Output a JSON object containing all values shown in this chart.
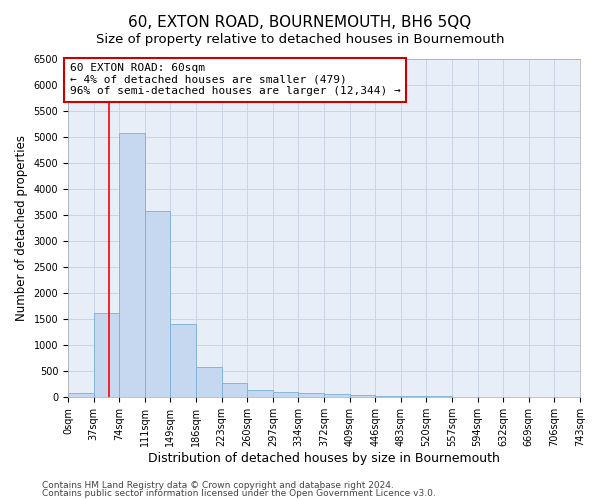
{
  "title": "60, EXTON ROAD, BOURNEMOUTH, BH6 5QQ",
  "subtitle": "Size of property relative to detached houses in Bournemouth",
  "xlabel": "Distribution of detached houses by size in Bournemouth",
  "ylabel": "Number of detached properties",
  "footer_line1": "Contains HM Land Registry data © Crown copyright and database right 2024.",
  "footer_line2": "Contains public sector information licensed under the Open Government Licence v3.0.",
  "bar_values": [
    75,
    1625,
    5075,
    3575,
    1400,
    575,
    275,
    140,
    100,
    75,
    55,
    40,
    30,
    20,
    15,
    10,
    8,
    5,
    3,
    2
  ],
  "bin_labels": [
    "0sqm",
    "37sqm",
    "74sqm",
    "111sqm",
    "149sqm",
    "186sqm",
    "223sqm",
    "260sqm",
    "297sqm",
    "334sqm",
    "372sqm",
    "409sqm",
    "446sqm",
    "483sqm",
    "520sqm",
    "557sqm",
    "594sqm",
    "632sqm",
    "669sqm",
    "706sqm",
    "743sqm"
  ],
  "ylim": [
    0,
    6500
  ],
  "yticks": [
    0,
    500,
    1000,
    1500,
    2000,
    2500,
    3000,
    3500,
    4000,
    4500,
    5000,
    5500,
    6000,
    6500
  ],
  "bar_color": "#c5d8f0",
  "bar_edge_color": "#7bafd4",
  "red_line_x": 1.62,
  "annotation_text": "60 EXTON ROAD: 60sqm\n← 4% of detached houses are smaller (479)\n96% of semi-detached houses are larger (12,344) →",
  "annotation_box_color": "#ffffff",
  "annotation_box_edge": "#cc0000",
  "grid_color": "#c8d4e8",
  "background_color": "#e8eef8",
  "fig_background": "#ffffff",
  "title_fontsize": 11,
  "subtitle_fontsize": 9.5,
  "xlabel_fontsize": 9,
  "ylabel_fontsize": 8.5,
  "tick_fontsize": 7,
  "annotation_fontsize": 8,
  "footer_fontsize": 6.5
}
